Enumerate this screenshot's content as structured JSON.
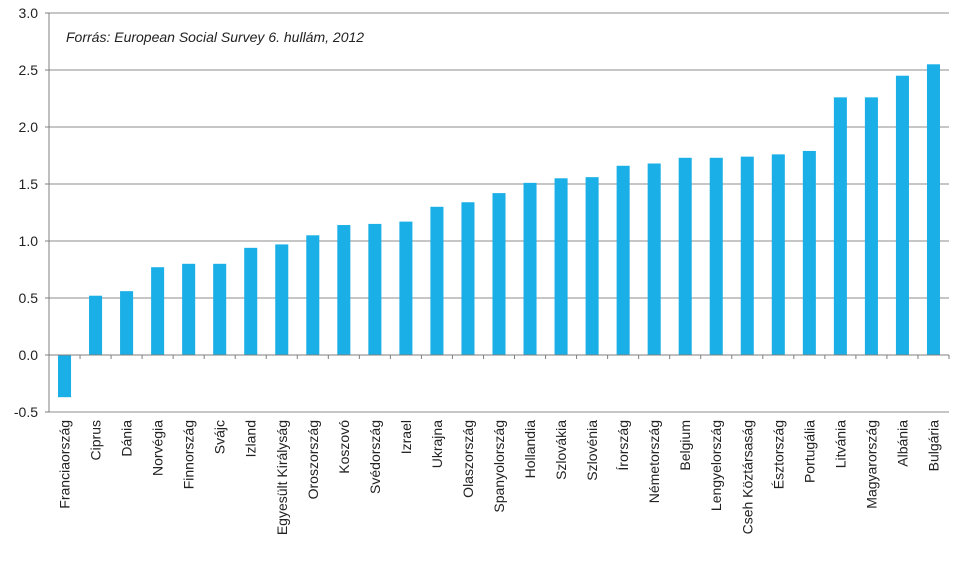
{
  "chart_data": {
    "type": "bar",
    "annotation": "Forrás: European Social Survey 6. hullám, 2012",
    "title": "",
    "xlabel": "",
    "ylabel": "",
    "ylim": [
      -0.5,
      3.0
    ],
    "yticks": [
      "-0.5",
      "0.0",
      "0.5",
      "1.0",
      "1.5",
      "2.0",
      "2.5",
      "3.0"
    ],
    "grid": true,
    "bar_color": "#1aafe6",
    "categories": [
      "Franciaország",
      "Ciprus",
      "Dánia",
      "Norvégia",
      "Finnország",
      "Svájc",
      "Izland",
      "Egyesült Királyság",
      "Oroszország",
      "Koszovó",
      "Svédország",
      "Izrael",
      "Ukrajna",
      "Olaszország",
      "Spanyolország",
      "Hollandia",
      "Szlovákia",
      "Szlovénia",
      "Írország",
      "Németország",
      "Belgium",
      "Lengyelország",
      "Cseh Köztársaság",
      "Észtország",
      "Portugália",
      "Litvánia",
      "Magyarország",
      "Albánia",
      "Bulgária"
    ],
    "values": [
      -0.37,
      0.52,
      0.56,
      0.77,
      0.8,
      0.8,
      0.94,
      0.97,
      1.05,
      1.14,
      1.15,
      1.17,
      1.3,
      1.34,
      1.42,
      1.51,
      1.55,
      1.56,
      1.66,
      1.68,
      1.73,
      1.73,
      1.74,
      1.76,
      1.79,
      2.26,
      2.26,
      2.45,
      2.55
    ]
  }
}
